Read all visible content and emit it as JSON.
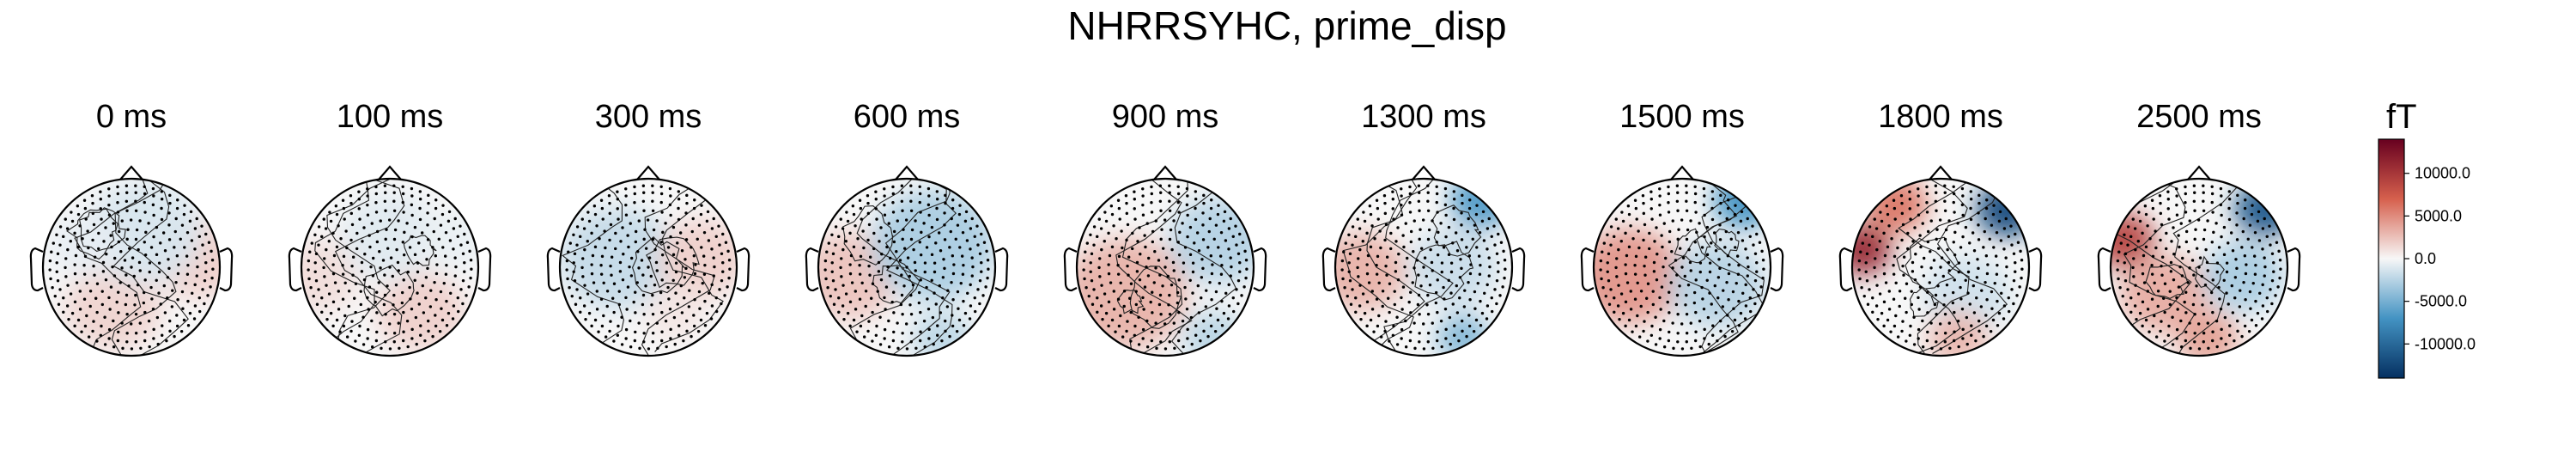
{
  "figure": {
    "title": "NHRRSYHC, prime_disp"
  },
  "chart_data": {
    "type": "heatmap",
    "title": "NHRRSYHC, prime_disp",
    "unit_label": "fT",
    "colormap": "RdBu_r",
    "colors": {
      "positive_max": "#67001f",
      "positive": "#d6604d",
      "neutral": "#f7f7f7",
      "negative": "#4393c3",
      "negative_max": "#053061",
      "sensor_dot": "#000000",
      "outline": "#000000"
    },
    "colorbar": {
      "range": [
        -14000,
        14000
      ],
      "ticks": [
        {
          "value": 10000,
          "label": "10000.0"
        },
        {
          "value": 5000,
          "label": "5000.0"
        },
        {
          "value": 0,
          "label": "0.0"
        },
        {
          "value": -5000,
          "label": "-5000.0"
        },
        {
          "value": -10000,
          "label": "-10000.0"
        }
      ]
    },
    "maps": [
      {
        "label": "0 ms",
        "time_ms": 0,
        "blobs": [
          {
            "cx": -0.2,
            "cy": 0.45,
            "value": 1600,
            "r": 0.55
          },
          {
            "cx": 0.75,
            "cy": -0.1,
            "value": 1800,
            "r": 0.5
          },
          {
            "cx": 0.15,
            "cy": -0.4,
            "value": -1200,
            "r": 0.65
          },
          {
            "cx": -0.55,
            "cy": -0.25,
            "value": -600,
            "r": 0.4
          }
        ]
      },
      {
        "label": "100 ms",
        "time_ms": 100,
        "blobs": [
          {
            "cx": -0.8,
            "cy": 0.1,
            "value": 1200,
            "r": 0.45
          },
          {
            "cx": 0.35,
            "cy": 0.5,
            "value": 1800,
            "r": 0.5
          },
          {
            "cx": 0.0,
            "cy": -0.35,
            "value": -900,
            "r": 0.55
          },
          {
            "cx": 0.7,
            "cy": -0.3,
            "value": -500,
            "r": 0.4
          }
        ]
      },
      {
        "label": "300 ms",
        "time_ms": 300,
        "blobs": [
          {
            "cx": -0.35,
            "cy": -0.1,
            "value": -2000,
            "r": 0.65
          },
          {
            "cx": 0.6,
            "cy": -0.1,
            "value": 1800,
            "r": 0.5
          },
          {
            "cx": 0.3,
            "cy": 0.5,
            "value": 800,
            "r": 0.35
          }
        ]
      },
      {
        "label": "600 ms",
        "time_ms": 600,
        "blobs": [
          {
            "cx": -0.65,
            "cy": 0.1,
            "value": 2400,
            "r": 0.55
          },
          {
            "cx": 0.3,
            "cy": -0.25,
            "value": -3000,
            "r": 0.7
          },
          {
            "cx": 0.4,
            "cy": 0.8,
            "value": -2200,
            "r": 0.35
          }
        ]
      },
      {
        "label": "900 ms",
        "time_ms": 900,
        "blobs": [
          {
            "cx": -0.45,
            "cy": 0.3,
            "value": 3200,
            "r": 0.7
          },
          {
            "cx": 0.6,
            "cy": -0.3,
            "value": -2600,
            "r": 0.55
          },
          {
            "cx": 0.55,
            "cy": 0.8,
            "value": -2400,
            "r": 0.35
          }
        ]
      },
      {
        "label": "1300 ms",
        "time_ms": 1300,
        "blobs": [
          {
            "cx": -0.7,
            "cy": 0.05,
            "value": 3200,
            "r": 0.5
          },
          {
            "cx": 0.65,
            "cy": -0.75,
            "value": -6500,
            "r": 0.35
          },
          {
            "cx": 0.45,
            "cy": 0.8,
            "value": -4500,
            "r": 0.3
          },
          {
            "cx": 0.35,
            "cy": 0.0,
            "value": -1800,
            "r": 0.5
          }
        ]
      },
      {
        "label": "1500 ms",
        "time_ms": 1500,
        "blobs": [
          {
            "cx": -0.6,
            "cy": 0.1,
            "value": 4500,
            "r": 0.6
          },
          {
            "cx": 0.7,
            "cy": -0.75,
            "value": -7000,
            "r": 0.35
          },
          {
            "cx": 0.4,
            "cy": 0.2,
            "value": -2500,
            "r": 0.55
          }
        ]
      },
      {
        "label": "1800 ms",
        "time_ms": 1800,
        "blobs": [
          {
            "cx": -0.88,
            "cy": -0.2,
            "value": 11000,
            "r": 0.32
          },
          {
            "cx": -0.5,
            "cy": -0.7,
            "value": 6000,
            "r": 0.35
          },
          {
            "cx": 0.75,
            "cy": -0.65,
            "value": -12000,
            "r": 0.35
          },
          {
            "cx": 0.3,
            "cy": 0.3,
            "value": -1500,
            "r": 0.5
          },
          {
            "cx": 0.2,
            "cy": 0.8,
            "value": 3000,
            "r": 0.35
          }
        ]
      },
      {
        "label": "2500 ms",
        "time_ms": 2500,
        "blobs": [
          {
            "cx": -0.85,
            "cy": -0.3,
            "value": 9000,
            "r": 0.35
          },
          {
            "cx": -0.4,
            "cy": 0.3,
            "value": 3500,
            "r": 0.5
          },
          {
            "cx": 0.75,
            "cy": -0.65,
            "value": -11000,
            "r": 0.35
          },
          {
            "cx": 0.5,
            "cy": 0.1,
            "value": -3000,
            "r": 0.45
          },
          {
            "cx": 0.1,
            "cy": 0.8,
            "value": 4000,
            "r": 0.35
          }
        ]
      }
    ]
  }
}
